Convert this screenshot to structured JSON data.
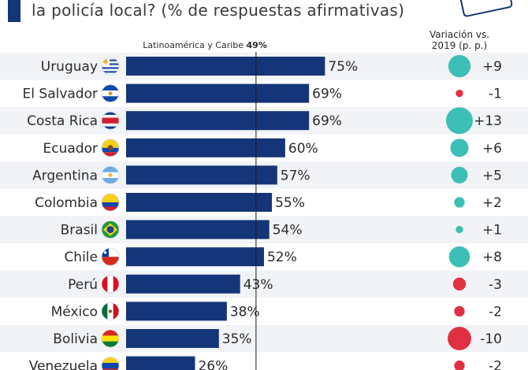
{
  "header": {
    "subtitle": "la policía local? (% de respuestas afirmativas)"
  },
  "colors": {
    "bar": "#143577",
    "positive": "#3cbfb6",
    "negative": "#e03042",
    "row_shade": "#f1f3f7",
    "accent": "#143577"
  },
  "chart_data": {
    "type": "bar",
    "orientation": "horizontal",
    "unit": "%",
    "xlim": [
      0,
      100
    ],
    "categories": [
      "Uruguay",
      "El Salvador",
      "Costa Rica",
      "Ecuador",
      "Argentina",
      "Colombia",
      "Brasil",
      "Chile",
      "Perú",
      "México",
      "Bolivia",
      "Venezuela"
    ],
    "values": [
      75,
      69,
      69,
      60,
      57,
      55,
      54,
      52,
      43,
      38,
      35,
      26
    ],
    "value_labels": [
      "75%",
      "69%",
      "69%",
      "60%",
      "57%",
      "55%",
      "54%",
      "52%",
      "43%",
      "38%",
      "35%",
      "26%"
    ],
    "reference_line": {
      "label": "Latinoamérica y Caribe",
      "value_label": "49%",
      "value": 49
    },
    "variation": {
      "header_line1": "Variación vs.",
      "header_line2": "2019 (p. p.)",
      "values": [
        9,
        -1,
        13,
        6,
        5,
        2,
        1,
        8,
        -3,
        -2,
        -10,
        -2
      ],
      "labels": [
        "+9",
        "-1",
        "+13",
        "+6",
        "+5",
        "+2",
        "+1",
        "+8",
        "-3",
        "-2",
        "-10",
        "-2"
      ]
    },
    "flags": [
      "uruguay-flag-icon",
      "el-salvador-flag-icon",
      "costa-rica-flag-icon",
      "ecuador-flag-icon",
      "argentina-flag-icon",
      "colombia-flag-icon",
      "brazil-flag-icon",
      "chile-flag-icon",
      "peru-flag-icon",
      "mexico-flag-icon",
      "bolivia-flag-icon",
      "venezuela-flag-icon"
    ]
  }
}
